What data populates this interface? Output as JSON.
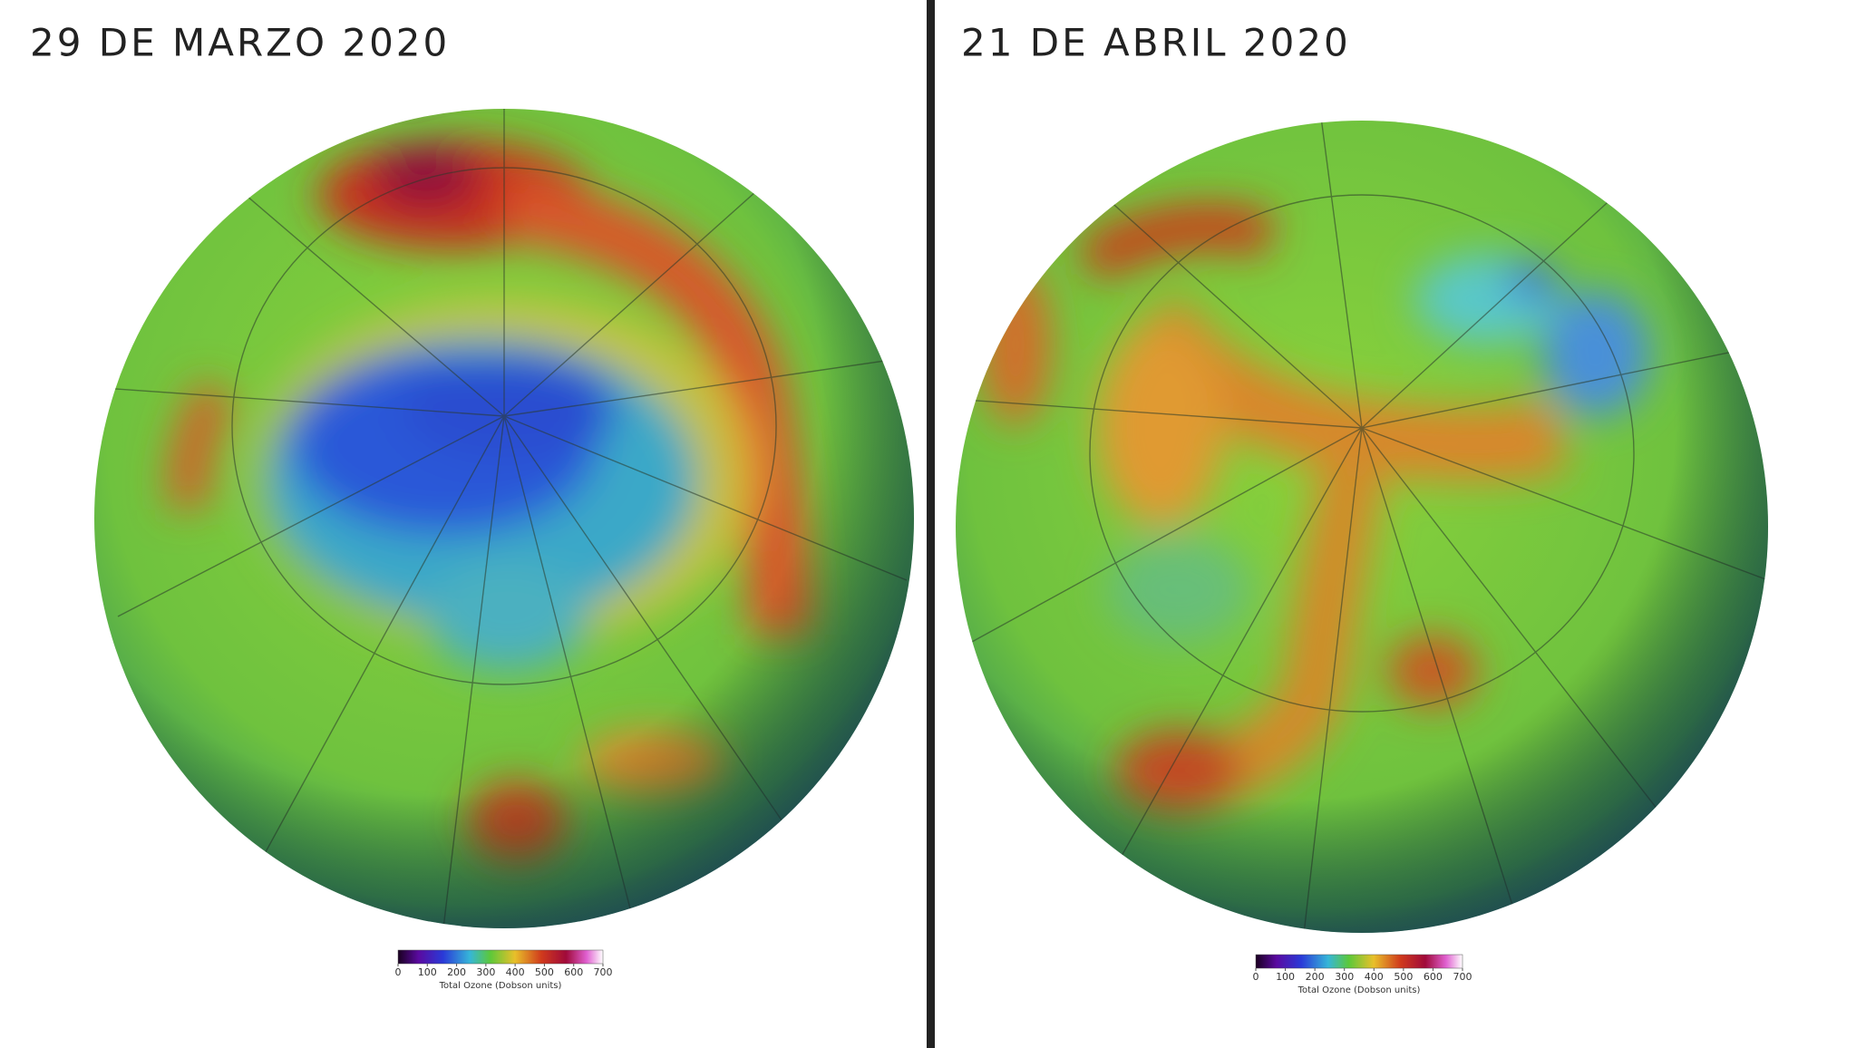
{
  "panels": [
    {
      "title": "29 DE MARZO 2020",
      "colorbar": {
        "ticks": [
          0,
          100,
          200,
          300,
          400,
          500,
          600,
          700
        ],
        "label": "Total Ozone (Dobson units)"
      }
    },
    {
      "title": "21 DE ABRIL 2020",
      "colorbar": {
        "ticks": [
          0,
          100,
          200,
          300,
          400,
          500,
          600,
          700
        ],
        "label": "Total Ozone (Dobson units)"
      }
    }
  ]
}
